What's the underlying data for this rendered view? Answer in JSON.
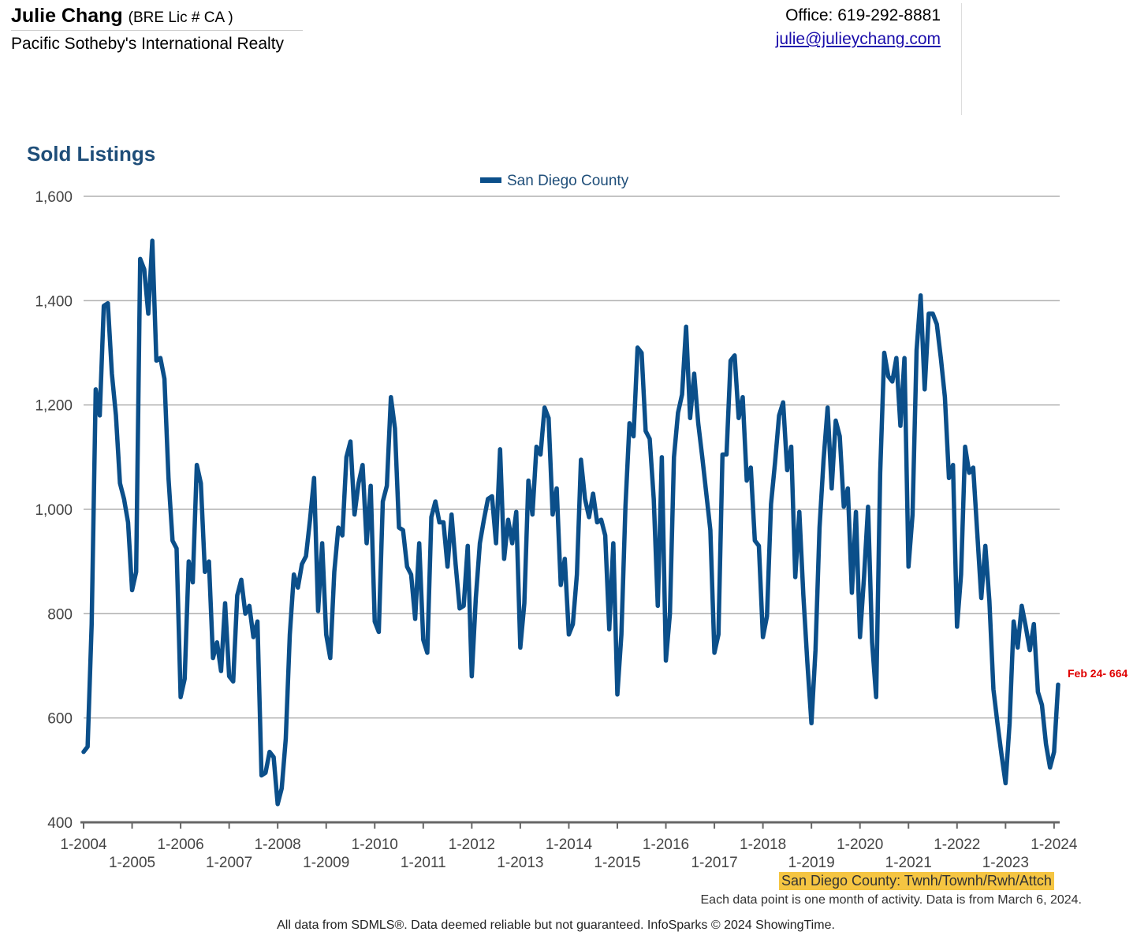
{
  "header": {
    "agent_name": "Julie Chang",
    "license": "(BRE Lic # CA )",
    "company": "Pacific Sotheby's International Realty",
    "office": "Office: 619-292-8881",
    "email": "julie@julieychang.com"
  },
  "footer": {
    "area_note": "San Diego County: Twnh/Townh/Rwh/Attch",
    "data_note": "Each data point is one month of activity. Data is from March 6, 2024.",
    "disclaimer": "All data from SDMLS®. Data deemed reliable but not guaranteed. InfoSparks © 2024 ShowingTime."
  },
  "chart_data": {
    "type": "line",
    "title": "Sold Listings",
    "ylim": [
      400,
      1600
    ],
    "yticks": [
      "400",
      "600",
      "800",
      "1,000",
      "1,200",
      "1,400",
      "1,600"
    ],
    "grid": true,
    "legend": "top-center",
    "x_start": "1-2004",
    "x_end": "2-2024",
    "x_tick_labels": [
      "1-2004",
      "1-2005",
      "1-2006",
      "1-2007",
      "1-2008",
      "1-2009",
      "1-2010",
      "1-2011",
      "1-2012",
      "1-2013",
      "1-2014",
      "1-2015",
      "1-2016",
      "1-2017",
      "1-2018",
      "1-2019",
      "1-2020",
      "1-2021",
      "1-2022",
      "1-2023",
      "1-2024"
    ],
    "annotation": "Feb 24- 664",
    "series": [
      {
        "name": "San Diego County",
        "color": "#0b4f8a",
        "values": [
          535,
          545,
          780,
          1230,
          1180,
          1390,
          1395,
          1260,
          1180,
          1050,
          1020,
          975,
          845,
          880,
          1480,
          1460,
          1375,
          1515,
          1285,
          1290,
          1250,
          1060,
          940,
          925,
          640,
          675,
          900,
          860,
          1085,
          1050,
          880,
          900,
          715,
          745,
          690,
          820,
          680,
          670,
          835,
          865,
          800,
          815,
          755,
          785,
          490,
          495,
          535,
          525,
          435,
          465,
          560,
          760,
          875,
          850,
          895,
          910,
          980,
          1060,
          805,
          935,
          760,
          715,
          880,
          965,
          950,
          1100,
          1130,
          990,
          1050,
          1085,
          935,
          1045,
          785,
          765,
          1015,
          1045,
          1215,
          1155,
          965,
          960,
          890,
          875,
          790,
          935,
          750,
          725,
          985,
          1015,
          975,
          975,
          890,
          990,
          895,
          810,
          815,
          930,
          680,
          830,
          935,
          980,
          1020,
          1025,
          935,
          1115,
          905,
          980,
          935,
          995,
          735,
          820,
          1055,
          990,
          1120,
          1105,
          1195,
          1175,
          990,
          1040,
          855,
          905,
          760,
          780,
          875,
          1095,
          1020,
          985,
          1030,
          975,
          980,
          950,
          770,
          935,
          645,
          760,
          1005,
          1165,
          1140,
          1310,
          1300,
          1150,
          1135,
          1020,
          815,
          1100,
          710,
          800,
          1100,
          1185,
          1220,
          1350,
          1175,
          1260,
          1165,
          1100,
          1030,
          960,
          725,
          760,
          1105,
          1105,
          1285,
          1295,
          1175,
          1215,
          1055,
          1080,
          940,
          930,
          755,
          795,
          1010,
          1090,
          1180,
          1205,
          1075,
          1120,
          870,
          995,
          835,
          705,
          590,
          730,
          965,
          1095,
          1195,
          1040,
          1170,
          1140,
          1005,
          1040,
          840,
          995,
          755,
          870,
          1005,
          745,
          640,
          1070,
          1300,
          1255,
          1245,
          1290,
          1160,
          1290,
          890,
          990,
          1305,
          1410,
          1230,
          1375,
          1375,
          1355,
          1290,
          1215,
          1060,
          1085,
          775,
          875,
          1120,
          1070,
          1080,
          955,
          830,
          930,
          825,
          655,
          590,
          530,
          475,
          590,
          785,
          735,
          815,
          775,
          730,
          780,
          650,
          625,
          550,
          505,
          535,
          664
        ]
      }
    ]
  }
}
